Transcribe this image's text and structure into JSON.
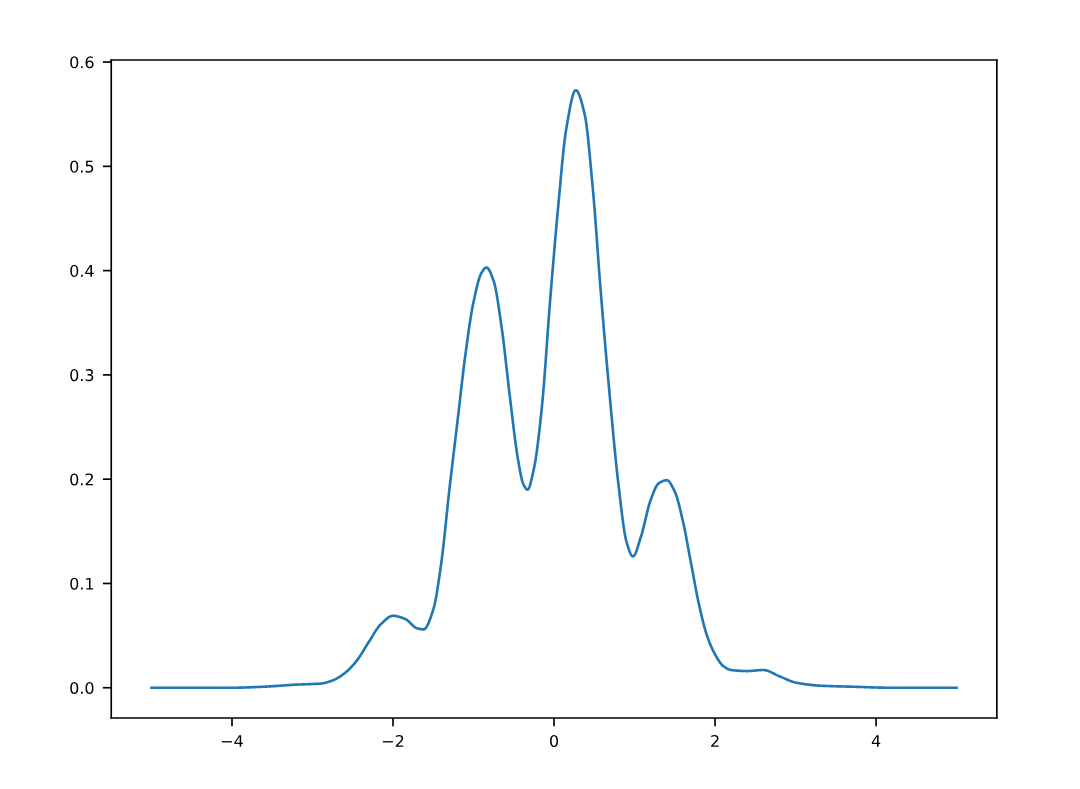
{
  "chart_data": {
    "type": "line",
    "x": [
      -5.0,
      -4.5,
      -4.0,
      -3.6,
      -3.2,
      -2.9,
      -2.75,
      -2.6,
      -2.45,
      -2.3,
      -2.15,
      -2.0,
      -1.85,
      -1.7,
      -1.62,
      -1.5,
      -1.4,
      -1.3,
      -1.2,
      -1.1,
      -1.0,
      -0.9,
      -0.84,
      -0.75,
      -0.65,
      -0.55,
      -0.45,
      -0.38,
      -0.33,
      -0.25,
      -0.15,
      -0.05,
      0.05,
      0.15,
      0.27,
      0.38,
      0.48,
      0.58,
      0.68,
      0.8,
      0.9,
      0.98,
      1.08,
      1.2,
      1.3,
      1.4,
      1.5,
      1.6,
      1.7,
      1.8,
      1.9,
      2.0,
      2.1,
      2.2,
      2.4,
      2.6,
      2.8,
      3.0,
      3.3,
      3.7,
      4.2,
      5.0
    ],
    "series": [
      {
        "color": "#1f77b4",
        "values": [
          0.0,
          0.0,
          0.0,
          0.001,
          0.003,
          0.004,
          0.007,
          0.014,
          0.026,
          0.044,
          0.061,
          0.069,
          0.066,
          0.057,
          0.056,
          0.075,
          0.12,
          0.19,
          0.255,
          0.32,
          0.37,
          0.398,
          0.403,
          0.39,
          0.345,
          0.28,
          0.22,
          0.195,
          0.19,
          0.21,
          0.27,
          0.37,
          0.46,
          0.535,
          0.573,
          0.55,
          0.48,
          0.38,
          0.29,
          0.195,
          0.14,
          0.126,
          0.145,
          0.18,
          0.196,
          0.199,
          0.188,
          0.16,
          0.12,
          0.08,
          0.05,
          0.032,
          0.021,
          0.017,
          0.016,
          0.017,
          0.011,
          0.005,
          0.002,
          0.001,
          0.0,
          0.0
        ]
      }
    ],
    "xlim": [
      -5.5,
      5.5
    ],
    "xticks": [
      {
        "value": -4,
        "label": "−4"
      },
      {
        "value": -2,
        "label": "−2"
      },
      0,
      2,
      4
    ],
    "ylim": [
      -0.029,
      0.602
    ],
    "yticks": [
      {
        "value": 0,
        "label": "0.0"
      },
      0.1,
      0.2,
      0.3,
      0.4,
      0.5,
      0.6
    ],
    "grid": false,
    "legend": false,
    "marker": "none",
    "line_style": "solid"
  }
}
